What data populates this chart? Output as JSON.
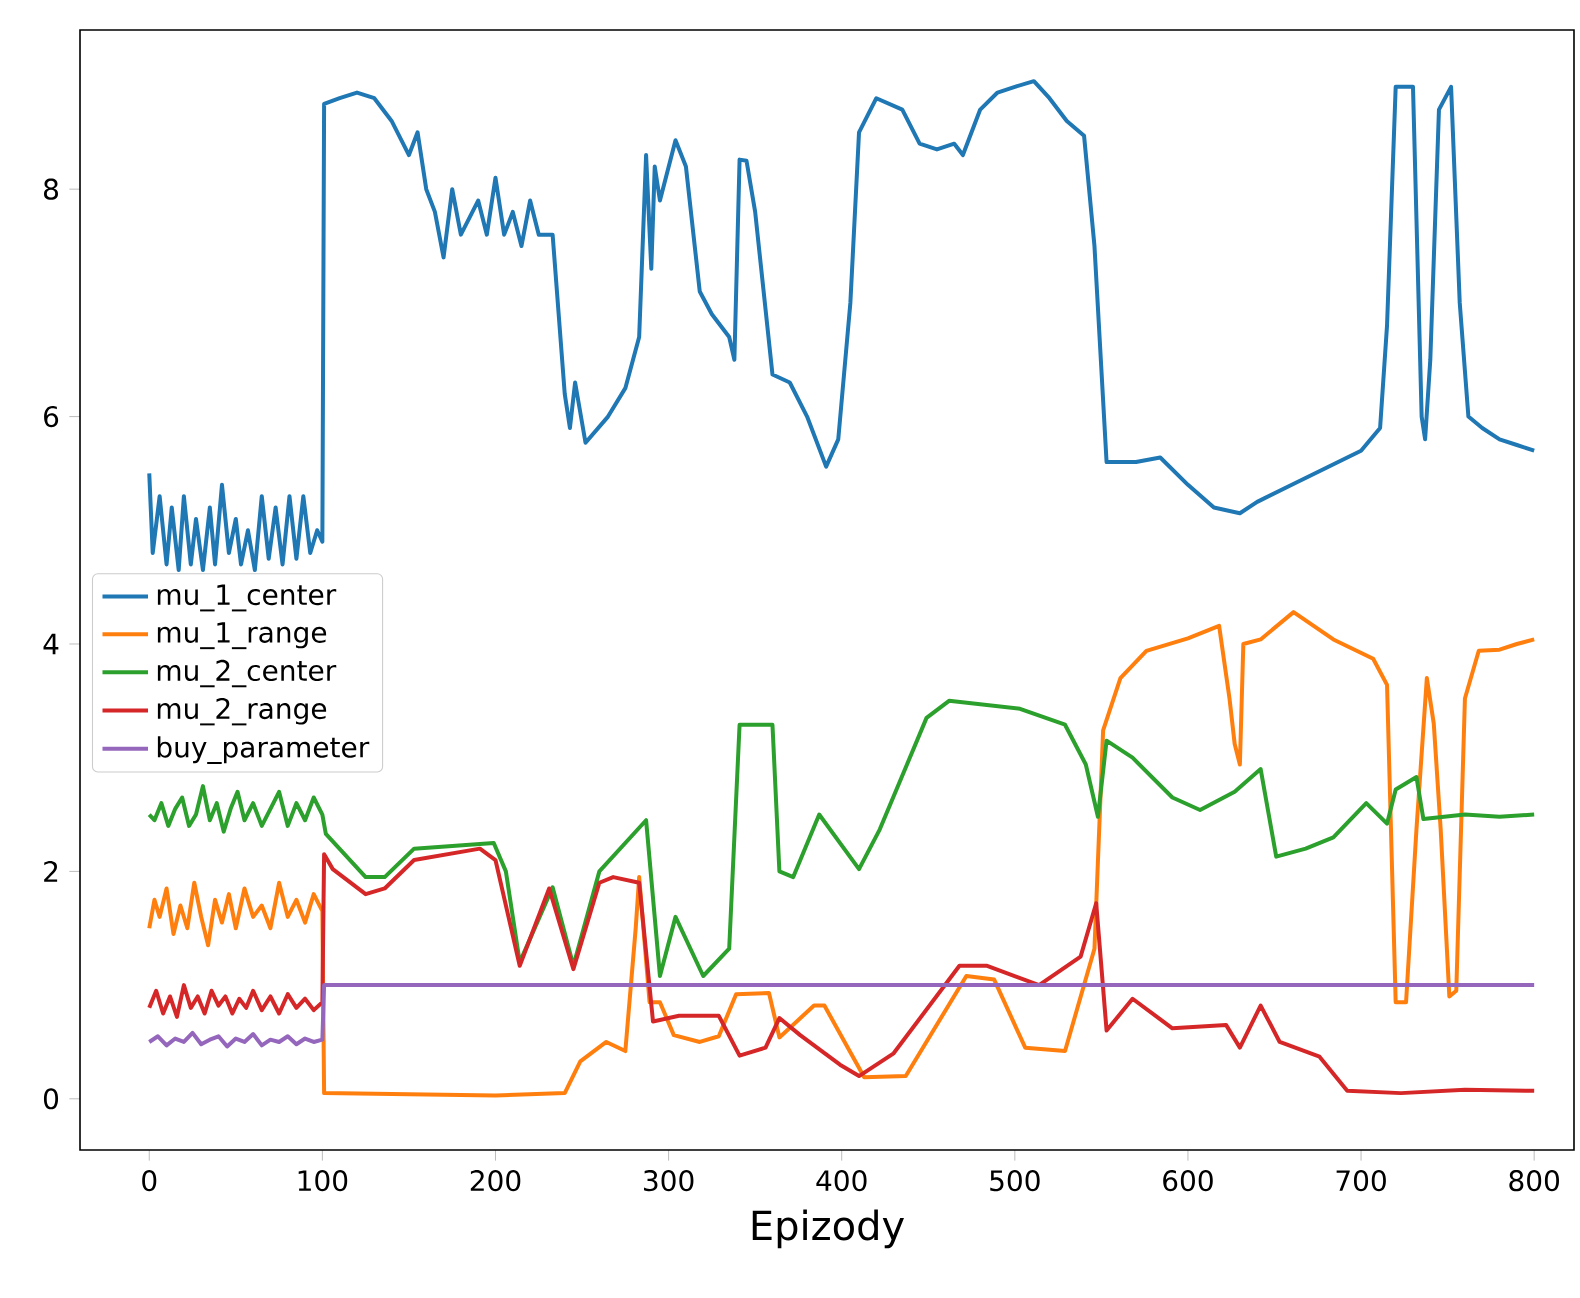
{
  "chart_data": {
    "type": "line",
    "xlabel": "Epizody",
    "xlim": [
      -40,
      823
    ],
    "ylim": [
      -0.45,
      9.4
    ],
    "xticks": [
      0,
      100,
      200,
      300,
      400,
      500,
      600,
      700,
      800
    ],
    "yticks": [
      0,
      2,
      4,
      6,
      8
    ],
    "legend": "left",
    "series": [
      {
        "name": "mu_1_center",
        "color": "#1f77b4",
        "x": [
          0,
          2,
          6,
          10,
          13,
          17,
          20,
          24,
          27,
          31,
          35,
          38,
          42,
          46,
          50,
          53,
          57,
          61,
          65,
          69,
          73,
          77,
          81,
          85,
          89,
          93,
          97,
          100,
          101,
          110,
          120,
          130,
          140,
          150,
          155,
          160,
          165,
          170,
          175,
          180,
          190,
          195,
          200,
          205,
          210,
          215,
          220,
          225,
          233,
          240,
          243,
          246,
          252,
          265,
          275,
          283,
          287,
          290,
          292,
          295,
          304,
          310,
          318,
          325,
          335,
          338,
          341,
          345,
          350,
          360,
          370,
          380,
          391,
          398,
          405,
          410,
          420,
          435,
          445,
          455,
          465,
          470,
          480,
          490,
          500,
          511,
          520,
          530,
          540,
          546,
          553,
          570,
          584,
          600,
          615,
          630,
          640,
          660,
          680,
          700,
          711,
          715,
          720,
          730,
          735,
          737,
          740,
          745,
          752,
          757,
          762,
          770,
          780,
          790,
          800
        ],
        "values": [
          5.5,
          4.8,
          5.3,
          4.7,
          5.2,
          4.65,
          5.3,
          4.7,
          5.1,
          4.65,
          5.2,
          4.7,
          5.4,
          4.8,
          5.1,
          4.7,
          5.0,
          4.65,
          5.3,
          4.75,
          5.2,
          4.7,
          5.3,
          4.75,
          5.3,
          4.8,
          5.0,
          4.9,
          8.75,
          8.8,
          8.85,
          8.8,
          8.6,
          8.3,
          8.5,
          8.0,
          7.8,
          7.4,
          8.0,
          7.6,
          7.9,
          7.6,
          8.1,
          7.6,
          7.8,
          7.5,
          7.9,
          7.6,
          7.6,
          6.2,
          5.9,
          6.3,
          5.77,
          6.0,
          6.25,
          6.7,
          8.3,
          7.3,
          8.2,
          7.9,
          8.43,
          8.2,
          7.1,
          6.9,
          6.7,
          6.5,
          8.26,
          8.25,
          7.8,
          6.37,
          6.3,
          6.0,
          5.56,
          5.8,
          7.0,
          8.5,
          8.8,
          8.7,
          8.4,
          8.35,
          8.4,
          8.3,
          8.7,
          8.85,
          8.9,
          8.95,
          8.8,
          8.6,
          8.47,
          7.5,
          5.6,
          5.6,
          5.64,
          5.4,
          5.2,
          5.15,
          5.25,
          5.4,
          5.55,
          5.7,
          5.9,
          6.8,
          8.9,
          8.9,
          6.0,
          5.8,
          6.5,
          8.7,
          8.9,
          7.0,
          6.0,
          5.9,
          5.8,
          5.75,
          5.7
        ]
      },
      {
        "name": "mu_1_range",
        "color": "#ff7f0e",
        "x": [
          0,
          3,
          6,
          10,
          14,
          18,
          22,
          26,
          30,
          34,
          38,
          42,
          46,
          50,
          55,
          60,
          65,
          70,
          75,
          80,
          85,
          90,
          95,
          100,
          101,
          150,
          200,
          240,
          249,
          264,
          275,
          281,
          283,
          289,
          295,
          303,
          318,
          329,
          339,
          358,
          364,
          384,
          390,
          413,
          437,
          472,
          488,
          506,
          529,
          546,
          551,
          561,
          576,
          600,
          618,
          624,
          627,
          630,
          632,
          642,
          661,
          684,
          707,
          715,
          720,
          726,
          732,
          738,
          742,
          746,
          751,
          755,
          760,
          768,
          780,
          790,
          800
        ],
        "values": [
          1.5,
          1.75,
          1.6,
          1.85,
          1.45,
          1.7,
          1.5,
          1.9,
          1.6,
          1.35,
          1.75,
          1.55,
          1.8,
          1.5,
          1.85,
          1.6,
          1.7,
          1.5,
          1.9,
          1.6,
          1.75,
          1.55,
          1.8,
          1.65,
          0.05,
          0.04,
          0.03,
          0.05,
          0.33,
          0.5,
          0.42,
          1.5,
          1.95,
          0.85,
          0.85,
          0.56,
          0.5,
          0.55,
          0.92,
          0.93,
          0.54,
          0.82,
          0.82,
          0.19,
          0.2,
          1.08,
          1.05,
          0.45,
          0.42,
          1.32,
          3.24,
          3.7,
          3.94,
          4.05,
          4.16,
          3.52,
          3.12,
          2.94,
          4.0,
          4.04,
          4.28,
          4.04,
          3.87,
          3.64,
          0.85,
          0.85,
          2.37,
          3.7,
          3.3,
          2.37,
          0.9,
          0.95,
          3.52,
          3.94,
          3.95,
          4.0,
          4.04
        ]
      },
      {
        "name": "mu_2_center",
        "color": "#2ca02c",
        "x": [
          0,
          3,
          7,
          11,
          15,
          19,
          23,
          27,
          31,
          35,
          39,
          43,
          47,
          51,
          55,
          60,
          65,
          70,
          75,
          80,
          85,
          90,
          95,
          100,
          102,
          125,
          136,
          153,
          199,
          206,
          214,
          233,
          245,
          260,
          287,
          295,
          304,
          320,
          335,
          341,
          360,
          364,
          372,
          387,
          410,
          422,
          449,
          462,
          503,
          529,
          541,
          548,
          553,
          568,
          591,
          607,
          627,
          642,
          651,
          668,
          684,
          703,
          715,
          720,
          732,
          736,
          760,
          780,
          800
        ],
        "values": [
          2.5,
          2.45,
          2.6,
          2.4,
          2.55,
          2.65,
          2.4,
          2.5,
          2.75,
          2.45,
          2.6,
          2.35,
          2.55,
          2.7,
          2.45,
          2.6,
          2.4,
          2.55,
          2.7,
          2.4,
          2.6,
          2.45,
          2.65,
          2.5,
          2.33,
          1.95,
          1.95,
          2.2,
          2.25,
          2.0,
          1.2,
          1.86,
          1.17,
          2.0,
          2.45,
          1.08,
          1.6,
          1.08,
          1.32,
          3.29,
          3.29,
          2.0,
          1.95,
          2.5,
          2.02,
          2.37,
          3.35,
          3.5,
          3.43,
          3.29,
          2.94,
          2.48,
          3.15,
          3.0,
          2.65,
          2.54,
          2.7,
          2.9,
          2.13,
          2.2,
          2.3,
          2.6,
          2.42,
          2.72,
          2.83,
          2.46,
          2.5,
          2.48,
          2.5
        ]
      },
      {
        "name": "mu_2_range",
        "color": "#d62728",
        "x": [
          0,
          4,
          8,
          12,
          16,
          20,
          24,
          28,
          32,
          36,
          40,
          44,
          48,
          52,
          56,
          60,
          65,
          70,
          75,
          80,
          85,
          90,
          95,
          100,
          101,
          106,
          125,
          136,
          153,
          191,
          200,
          214,
          231,
          245,
          260,
          268,
          283,
          291,
          306,
          329,
          341,
          356,
          364,
          376,
          399,
          410,
          430,
          468,
          484,
          514,
          538,
          547,
          553,
          568,
          591,
          622,
          630,
          642,
          653,
          676,
          692,
          723,
          760,
          800
        ],
        "values": [
          0.8,
          0.95,
          0.75,
          0.9,
          0.72,
          1.0,
          0.8,
          0.9,
          0.75,
          0.95,
          0.82,
          0.9,
          0.75,
          0.88,
          0.8,
          0.95,
          0.78,
          0.9,
          0.75,
          0.92,
          0.8,
          0.88,
          0.78,
          0.85,
          2.15,
          2.02,
          1.8,
          1.85,
          2.1,
          2.2,
          2.1,
          1.17,
          1.85,
          1.14,
          1.9,
          1.95,
          1.9,
          0.68,
          0.73,
          0.73,
          0.38,
          0.45,
          0.71,
          0.56,
          0.3,
          0.2,
          0.4,
          1.17,
          1.17,
          1.0,
          1.25,
          1.72,
          0.6,
          0.88,
          0.62,
          0.65,
          0.45,
          0.82,
          0.5,
          0.37,
          0.07,
          0.05,
          0.08,
          0.07
        ]
      },
      {
        "name": "buy_parameter",
        "color": "#9467bd",
        "x": [
          0,
          5,
          10,
          15,
          20,
          25,
          30,
          35,
          40,
          45,
          50,
          55,
          60,
          65,
          70,
          75,
          80,
          85,
          90,
          95,
          100,
          101,
          800
        ],
        "values": [
          0.5,
          0.55,
          0.47,
          0.53,
          0.5,
          0.58,
          0.48,
          0.52,
          0.55,
          0.46,
          0.53,
          0.5,
          0.57,
          0.47,
          0.52,
          0.5,
          0.55,
          0.48,
          0.53,
          0.5,
          0.52,
          1.0,
          1.0
        ]
      }
    ]
  }
}
